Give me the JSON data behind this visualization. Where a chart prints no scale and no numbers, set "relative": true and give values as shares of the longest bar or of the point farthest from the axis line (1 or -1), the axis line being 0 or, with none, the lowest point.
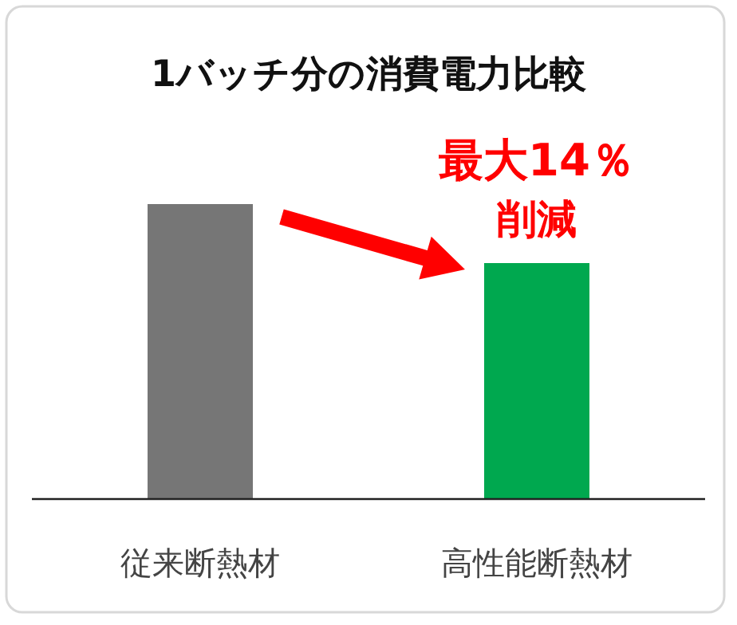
{
  "chart_data": {
    "type": "bar",
    "title": "1バッチ分の消費電力比較",
    "categories": [
      "従来断熱材",
      "高性能断熱材"
    ],
    "values": [
      1,
      0.8
    ],
    "colors": [
      "#767676",
      "#00a84f"
    ],
    "relative": true,
    "annotations": [
      "最大14％",
      "削減"
    ]
  }
}
